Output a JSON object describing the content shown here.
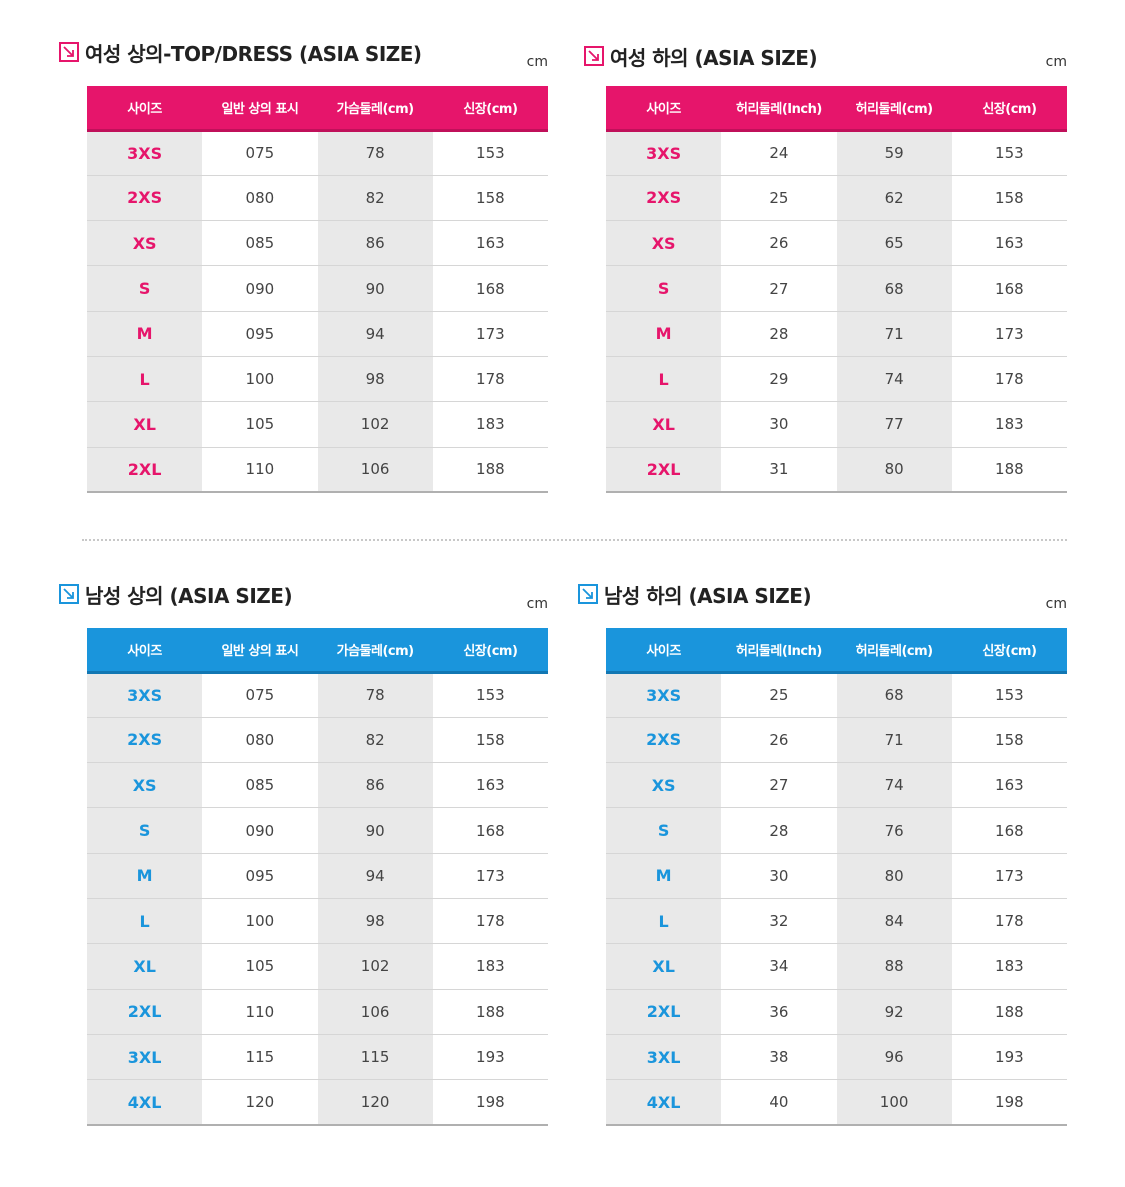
{
  "unit": "cm",
  "sections": [
    {
      "title": "여성 상의-TOP/DRESS (ASIA SIZE)",
      "headers": [
        "사이즈",
        "일반 상의 표시",
        "가슴둘레(cm)",
        "신장(cm)"
      ],
      "rows": [
        [
          "3XS",
          "075",
          "78",
          "153"
        ],
        [
          "2XS",
          "080",
          "82",
          "158"
        ],
        [
          "XS",
          "085",
          "86",
          "163"
        ],
        [
          "S",
          "090",
          "90",
          "168"
        ],
        [
          "M",
          "095",
          "94",
          "173"
        ],
        [
          "L",
          "100",
          "98",
          "178"
        ],
        [
          "XL",
          "105",
          "102",
          "183"
        ],
        [
          "2XL",
          "110",
          "106",
          "188"
        ]
      ]
    },
    {
      "title": "여성 하의 (ASIA SIZE)",
      "headers": [
        "사이즈",
        "허리둘레(Inch)",
        "허리둘레(cm)",
        "신장(cm)"
      ],
      "rows": [
        [
          "3XS",
          "24",
          "59",
          "153"
        ],
        [
          "2XS",
          "25",
          "62",
          "158"
        ],
        [
          "XS",
          "26",
          "65",
          "163"
        ],
        [
          "S",
          "27",
          "68",
          "168"
        ],
        [
          "M",
          "28",
          "71",
          "173"
        ],
        [
          "L",
          "29",
          "74",
          "178"
        ],
        [
          "XL",
          "30",
          "77",
          "183"
        ],
        [
          "2XL",
          "31",
          "80",
          "188"
        ]
      ]
    },
    {
      "title": "남성 상의 (ASIA SIZE)",
      "headers": [
        "사이즈",
        "일반 상의 표시",
        "가슴둘레(cm)",
        "신장(cm)"
      ],
      "rows": [
        [
          "3XS",
          "075",
          "78",
          "153"
        ],
        [
          "2XS",
          "080",
          "82",
          "158"
        ],
        [
          "XS",
          "085",
          "86",
          "163"
        ],
        [
          "S",
          "090",
          "90",
          "168"
        ],
        [
          "M",
          "095",
          "94",
          "173"
        ],
        [
          "L",
          "100",
          "98",
          "178"
        ],
        [
          "XL",
          "105",
          "102",
          "183"
        ],
        [
          "2XL",
          "110",
          "106",
          "188"
        ],
        [
          "3XL",
          "115",
          "115",
          "193"
        ],
        [
          "4XL",
          "120",
          "120",
          "198"
        ]
      ]
    },
    {
      "title": "남성 하의 (ASIA SIZE)",
      "headers": [
        "사이즈",
        "허리둘레(Inch)",
        "허리둘레(cm)",
        "신장(cm)"
      ],
      "rows": [
        [
          "3XS",
          "25",
          "68",
          "153"
        ],
        [
          "2XS",
          "26",
          "71",
          "158"
        ],
        [
          "XS",
          "27",
          "74",
          "163"
        ],
        [
          "S",
          "28",
          "76",
          "168"
        ],
        [
          "M",
          "30",
          "80",
          "173"
        ],
        [
          "L",
          "32",
          "84",
          "178"
        ],
        [
          "XL",
          "34",
          "88",
          "183"
        ],
        [
          "2XL",
          "36",
          "92",
          "188"
        ],
        [
          "3XL",
          "38",
          "96",
          "193"
        ],
        [
          "4XL",
          "40",
          "100",
          "198"
        ]
      ]
    }
  ],
  "colors": {
    "women_accent": "#e6156b",
    "men_accent": "#1a95dc"
  },
  "icon": "arrow-down-right-icon"
}
